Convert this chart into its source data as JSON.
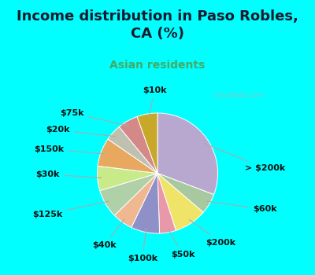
{
  "title": "Income distribution in Paso Robles,\nCA (%)",
  "subtitle": "Asian residents",
  "bg_color": "#00FFFF",
  "chart_bg": "#d6ede8",
  "watermark": "© City-Data.com",
  "labels": [
    "> $200k",
    "$60k",
    "$200k",
    "$50k",
    "$100k",
    "$40k",
    "$125k",
    "$30k",
    "$150k",
    "$20k",
    "$75k",
    "$10k"
  ],
  "values": [
    28,
    5,
    8,
    4,
    7,
    5,
    7,
    6,
    7,
    4,
    5,
    5
  ],
  "colors": [
    "#b8a8d0",
    "#a8c8a0",
    "#f0e468",
    "#e898a8",
    "#9090c8",
    "#f0b890",
    "#b0d0a8",
    "#c8ea88",
    "#e8a860",
    "#c0c0b0",
    "#d48888",
    "#c8a828"
  ],
  "label_fontsize": 8,
  "title_fontsize": 13,
  "subtitle_fontsize": 10,
  "title_color": "#1a1a2e",
  "subtitle_color": "#44aa66",
  "line_color": "#aaaaaa",
  "label_color": "#111111",
  "label_positions": {
    "> $200k": [
      1.45,
      0.08,
      "left"
    ],
    "$60k": [
      1.58,
      -0.6,
      "left"
    ],
    "$200k": [
      1.05,
      -1.15,
      "center"
    ],
    "$50k": [
      0.42,
      -1.35,
      "center"
    ],
    "$100k": [
      -0.25,
      -1.42,
      "center"
    ],
    "$40k": [
      -0.88,
      -1.2,
      "center"
    ],
    "$125k": [
      -1.58,
      -0.68,
      "right"
    ],
    "$30k": [
      -1.62,
      -0.02,
      "right"
    ],
    "$150k": [
      -1.55,
      0.4,
      "right"
    ],
    "$20k": [
      -1.45,
      0.72,
      "right"
    ],
    "$75k": [
      -1.22,
      1.0,
      "right"
    ],
    "$10k": [
      -0.05,
      1.38,
      "center"
    ]
  }
}
